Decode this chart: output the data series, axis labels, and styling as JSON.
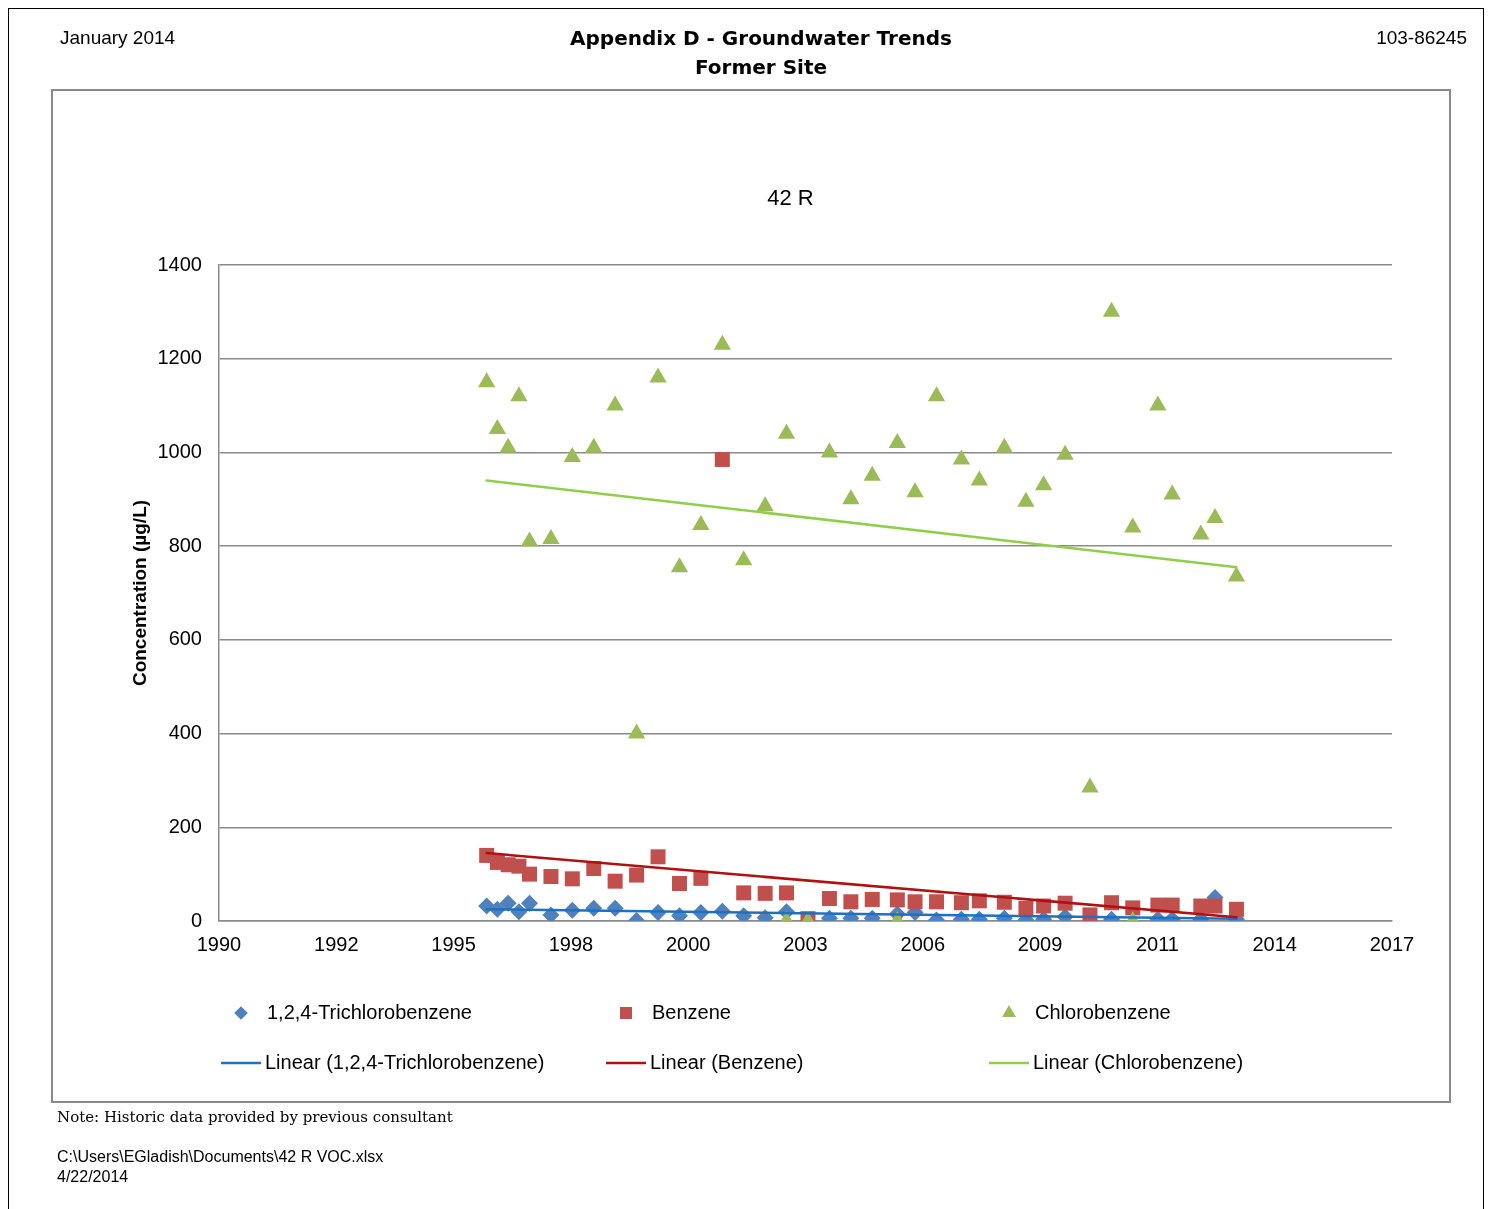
{
  "chart_data": {
    "type": "scatter",
    "title": "42 R",
    "ylabel": "Concentration (µg/L)",
    "xlim": [
      "1990-01-01",
      "2017-05-19"
    ],
    "xticks": [
      {
        "value": "1990-01-01",
        "label": "1990"
      },
      {
        "value": "1992-09-27",
        "label": "1992"
      },
      {
        "value": "1995-06-24",
        "label": "1995"
      },
      {
        "value": "1998-03-20",
        "label": "1998"
      },
      {
        "value": "2000-12-14",
        "label": "2000"
      },
      {
        "value": "2003-09-10",
        "label": "2003"
      },
      {
        "value": "2006-06-06",
        "label": "2006"
      },
      {
        "value": "2009-03-02",
        "label": "2009"
      },
      {
        "value": "2011-11-27",
        "label": "2011"
      },
      {
        "value": "2014-08-23",
        "label": "2014"
      },
      {
        "value": "2017-05-19",
        "label": "2017"
      }
    ],
    "ylim": [
      0,
      1400
    ],
    "yticks": [
      0,
      200,
      400,
      600,
      800,
      1000,
      1200,
      1400
    ],
    "grid": "y",
    "legend": "bottom",
    "series": [
      {
        "name": "1,2,4-Trichlorobenzene",
        "type": "scatter",
        "marker": "diamond",
        "color": "#4f81bd",
        "x": [
          "1996-04",
          "1996-07",
          "1996-10",
          "1997-01",
          "1997-04",
          "1997-10",
          "1998-04",
          "1998-10",
          "1999-04",
          "1999-10",
          "2000-04",
          "2000-10",
          "2001-04",
          "2001-10",
          "2002-04",
          "2002-10",
          "2003-04",
          "2004-04",
          "2004-10",
          "2005-04",
          "2005-11",
          "2006-04",
          "2006-10",
          "2007-05",
          "2007-10",
          "2008-05",
          "2008-11",
          "2009-04",
          "2009-10",
          "2010-11",
          "2011-12",
          "2012-04",
          "2012-12",
          "2013-04",
          "2013-10"
        ],
        "values": [
          32,
          25,
          38,
          20,
          38,
          13,
          23,
          27,
          27,
          1,
          18,
          11,
          18,
          21,
          11,
          7,
          20,
          6,
          6,
          6,
          15,
          18,
          2,
          4,
          4,
          6,
          2,
          4,
          9,
          4,
          4,
          4,
          4,
          50,
          4
        ]
      },
      {
        "name": "Benzene",
        "type": "scatter",
        "marker": "square",
        "color": "#c0504d",
        "x": [
          "1996-04",
          "1996-07",
          "1996-10",
          "1997-01",
          "1997-04",
          "1997-10",
          "1998-04",
          "1998-10",
          "1999-04",
          "1999-10",
          "2000-04",
          "2000-10",
          "2001-04",
          "2001-10",
          "2002-04",
          "2002-10",
          "2003-04",
          "2003-10",
          "2004-04",
          "2004-10",
          "2005-04",
          "2005-11",
          "2006-04",
          "2006-10",
          "2007-05",
          "2007-10",
          "2008-05",
          "2008-11",
          "2009-04",
          "2009-10",
          "2010-05",
          "2010-11",
          "2011-05",
          "2011-12",
          "2012-04",
          "2012-12",
          "2013-04",
          "2013-10"
        ],
        "values": [
          140,
          125,
          120,
          117,
          100,
          95,
          90,
          112,
          85,
          98,
          137,
          80,
          91,
          985,
          60,
          59,
          60,
          5,
          48,
          41,
          46,
          45,
          41,
          41,
          39,
          43,
          40,
          27,
          32,
          38,
          13,
          39,
          28,
          34,
          34,
          32,
          32,
          25
        ]
      },
      {
        "name": "Chlorobenzene",
        "type": "scatter",
        "marker": "triangle",
        "color": "#9bbb59",
        "x": [
          "1996-04",
          "1996-07",
          "1996-10",
          "1997-01",
          "1997-04",
          "1997-10",
          "1998-04",
          "1998-10",
          "1999-04",
          "1999-10",
          "2000-04",
          "2000-10",
          "2001-04",
          "2001-10",
          "2002-04",
          "2002-10",
          "2003-04",
          "2003-04",
          "2003-10",
          "2004-04",
          "2004-10",
          "2005-04",
          "2005-11",
          "2005-11",
          "2006-04",
          "2006-10",
          "2007-05",
          "2007-10",
          "2008-05",
          "2008-11",
          "2009-04",
          "2009-10",
          "2010-05",
          "2010-11",
          "2011-05",
          "2011-05",
          "2011-12",
          "2012-04",
          "2012-12",
          "2013-04",
          "2013-10"
        ],
        "values": [
          1150,
          1050,
          1010,
          1120,
          810,
          815,
          990,
          1010,
          1100,
          400,
          1160,
          755,
          845,
          1230,
          770,
          885,
          1040,
          0,
          0,
          1000,
          900,
          950,
          1020,
          0,
          915,
          1120,
          985,
          940,
          1010,
          895,
          930,
          995,
          285,
          1300,
          840,
          0,
          1100,
          910,
          825,
          860,
          735
        ]
      },
      {
        "name": "Linear (1,2,4-Trichlorobenzene)",
        "type": "line",
        "marker": "none",
        "color": "#1f70c1",
        "x": [
          "1996-04",
          "2013-10"
        ],
        "values": [
          25,
          5
        ]
      },
      {
        "name": "Linear (Benzene)",
        "type": "line",
        "marker": "none",
        "color": "#b01010",
        "x": [
          "1996-04",
          "2013-10"
        ],
        "values": [
          145,
          8
        ]
      },
      {
        "name": "Linear (Chlorobenzene)",
        "type": "line",
        "marker": "none",
        "color": "#8fce4a",
        "x": [
          "1996-04",
          "2013-10"
        ],
        "values": [
          940,
          755
        ]
      }
    ],
    "annotations": [
      "January 2014",
      "Appendix D - Groundwater Trends",
      "Former Site",
      "103-86245",
      "Note: Historic data provided by previous consultant",
      "C:\\Users\\EGladish\\Documents\\42 R VOC.xlsx",
      "4/22/2014"
    ]
  }
}
